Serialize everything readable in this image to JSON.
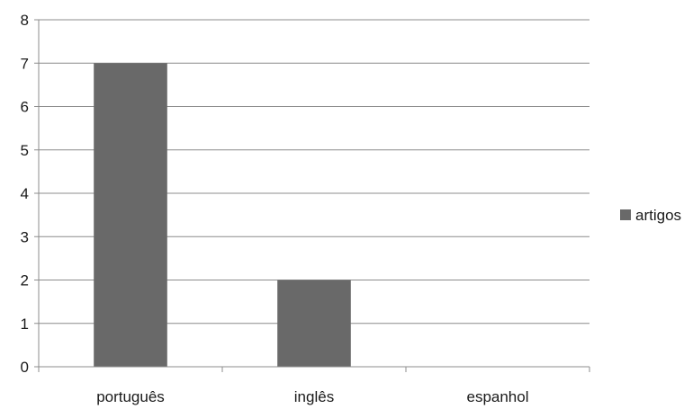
{
  "chart_data": {
    "type": "bar",
    "categories": [
      "português",
      "inglês",
      "espanhol"
    ],
    "series": [
      {
        "name": "artigos",
        "values": [
          7,
          2,
          0
        ]
      }
    ],
    "title": "",
    "xlabel": "",
    "ylabel": "",
    "ylim": [
      0,
      8
    ],
    "yticks": [
      "0",
      "1",
      "2",
      "3",
      "4",
      "5",
      "6",
      "7",
      "8"
    ],
    "grid": true,
    "legend_position": "right",
    "colors": {
      "bar": "#696969",
      "grid": "#8c8c8c",
      "axis": "#8c8c8c",
      "text": "#1a1a1a"
    }
  }
}
